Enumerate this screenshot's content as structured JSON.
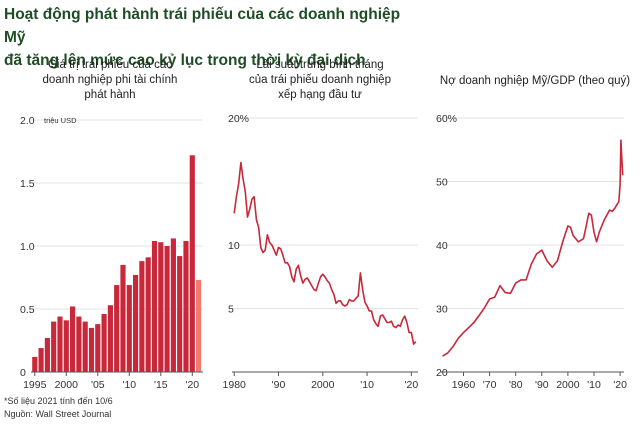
{
  "headline": {
    "line1": "Hoạt động phát hành trái phiếu của các doanh nghiệp Mỹ",
    "line2": "đã tăng lên mức cao kỷ lục trong thời kỳ đại dịch"
  },
  "colors": {
    "headline": "#1f4d26",
    "bar": "#c8283a",
    "bar_highlight": "#f07b70",
    "line": "#c8283a",
    "grid": "#e3e3e3",
    "axis": "#555555"
  },
  "footnotes": {
    "note": "*Số liệu 2021 tính đến 10/6",
    "source": "Nguồn: Wall Street Journal"
  },
  "chart_data": [
    {
      "type": "bar",
      "title_lines": [
        "Giá trị trái phiếu của các",
        "doanh nghiệp phi tài chính",
        "phát hành"
      ],
      "unit": "triệu USD",
      "ylim": [
        0,
        2.0
      ],
      "y_ticks": [
        0,
        0.5,
        1.0,
        1.5,
        2.0
      ],
      "y_tick_labels": [
        "0",
        "0.5",
        "1.0",
        "1.5",
        "2.0"
      ],
      "x_tick_labels": [
        "1995",
        "2000",
        "'05",
        "'10",
        "'15",
        "'20"
      ],
      "x_tick_years": [
        1995,
        2000,
        2005,
        2010,
        2015,
        2020
      ],
      "grid": true,
      "categories": [
        1995,
        1996,
        1997,
        1998,
        1999,
        2000,
        2001,
        2002,
        2003,
        2004,
        2005,
        2006,
        2007,
        2008,
        2009,
        2010,
        2011,
        2012,
        2013,
        2014,
        2015,
        2016,
        2017,
        2018,
        2019,
        2020,
        2021
      ],
      "values": [
        0.12,
        0.19,
        0.27,
        0.4,
        0.44,
        0.41,
        0.52,
        0.44,
        0.4,
        0.35,
        0.38,
        0.46,
        0.53,
        0.69,
        0.85,
        0.69,
        0.77,
        0.88,
        0.91,
        1.04,
        1.03,
        1.0,
        1.06,
        0.92,
        1.04,
        1.72,
        0.73
      ],
      "highlight_last": true
    },
    {
      "type": "line",
      "title_lines": [
        "Lãi suất trung bình tháng",
        "của trái phiếu doanh nghiệp",
        "xếp hạng đầu tư"
      ],
      "ylim": [
        0,
        20
      ],
      "y_ticks": [
        5,
        10,
        20
      ],
      "y_tick_labels": [
        "5",
        "10",
        "20%"
      ],
      "xlim": [
        1979.5,
        2021.5
      ],
      "x_tick_labels": [
        "1980",
        "'90",
        "2000",
        "'10",
        "'20"
      ],
      "x_tick_years": [
        1980,
        1990,
        2000,
        2010,
        2020
      ],
      "grid": true,
      "x": [
        1980,
        1980.5,
        1981,
        1981.5,
        1982,
        1982.5,
        1983,
        1983.5,
        1984,
        1984.5,
        1985,
        1985.5,
        1986,
        1986.5,
        1987,
        1987.5,
        1988,
        1988.5,
        1989,
        1989.5,
        1990,
        1990.5,
        1991,
        1991.5,
        1992,
        1992.5,
        1993,
        1993.5,
        1994,
        1994.5,
        1995,
        1995.5,
        1996,
        1996.5,
        1997,
        1997.5,
        1998,
        1998.5,
        1999,
        1999.5,
        2000,
        2000.5,
        2001,
        2001.5,
        2002,
        2002.5,
        2003,
        2003.5,
        2004,
        2004.5,
        2005,
        2005.5,
        2006,
        2006.5,
        2007,
        2007.5,
        2008,
        2008.5,
        2009,
        2009.5,
        2010,
        2010.5,
        2011,
        2011.5,
        2012,
        2012.5,
        2013,
        2013.5,
        2014,
        2014.5,
        2015,
        2015.5,
        2016,
        2016.5,
        2017,
        2017.5,
        2018,
        2018.5,
        2019,
        2019.5,
        2020,
        2020.5,
        2021
      ],
      "y": [
        12.5,
        13.8,
        14.8,
        16.5,
        15.2,
        14.2,
        12.2,
        12.8,
        13.6,
        13.8,
        12.0,
        11.4,
        9.8,
        9.4,
        9.6,
        10.8,
        10.2,
        10.0,
        9.6,
        9.2,
        9.8,
        9.7,
        9.2,
        8.6,
        8.6,
        8.3,
        7.5,
        7.1,
        8.1,
        8.4,
        7.6,
        7.0,
        7.3,
        7.4,
        7.1,
        6.8,
        6.5,
        6.4,
        7.0,
        7.5,
        7.7,
        7.5,
        7.2,
        7.0,
        6.5,
        6.1,
        5.4,
        5.6,
        5.6,
        5.3,
        5.2,
        5.3,
        5.7,
        5.6,
        5.6,
        5.8,
        6.0,
        7.8,
        6.5,
        5.5,
        5.2,
        4.8,
        4.8,
        4.1,
        3.8,
        3.6,
        4.4,
        4.5,
        4.2,
        3.9,
        3.9,
        4.0,
        3.6,
        3.5,
        3.7,
        3.6,
        4.1,
        4.4,
        3.9,
        3.1,
        3.1,
        2.2,
        2.4
      ]
    },
    {
      "type": "line",
      "title_lines": [
        "Nợ doanh nghiệp Mỹ/GDP (theo quý)"
      ],
      "ylim": [
        20,
        60
      ],
      "y_ticks": [
        30,
        40,
        50,
        60
      ],
      "y_tick_labels": [
        "30",
        "40",
        "50",
        "60%"
      ],
      "xlim": [
        1951,
        2021.5
      ],
      "x_tick_labels": [
        "1960",
        "'70",
        "'80",
        "'90",
        "2000",
        "'10",
        "'20"
      ],
      "x_tick_years": [
        1960,
        1970,
        1980,
        1990,
        2000,
        2010,
        2020
      ],
      "grid": true,
      "x": [
        1952,
        1954,
        1956,
        1958,
        1960,
        1962,
        1964,
        1966,
        1968,
        1970,
        1972,
        1974,
        1976,
        1978,
        1980,
        1982,
        1984,
        1986,
        1988,
        1990,
        1992,
        1994,
        1996,
        1998,
        2000,
        2001,
        2002,
        2004,
        2006,
        2007,
        2008,
        2009,
        2010,
        2011,
        2012,
        2014,
        2016,
        2017,
        2018,
        2019,
        2019.5,
        2020,
        2020.3,
        2020.6,
        2021
      ],
      "y": [
        22.5,
        23.0,
        24.0,
        25.3,
        26.2,
        27.0,
        27.8,
        28.9,
        30.1,
        31.5,
        31.8,
        33.6,
        32.5,
        32.4,
        34.0,
        34.5,
        34.5,
        37.0,
        38.6,
        39.2,
        37.5,
        36.5,
        37.5,
        40.5,
        43.0,
        42.8,
        41.5,
        40.5,
        41.0,
        43.0,
        45.0,
        44.7,
        42.0,
        40.5,
        42.0,
        44.0,
        45.5,
        45.3,
        45.8,
        46.5,
        46.8,
        49.5,
        56.5,
        54.0,
        51.0
      ]
    }
  ]
}
